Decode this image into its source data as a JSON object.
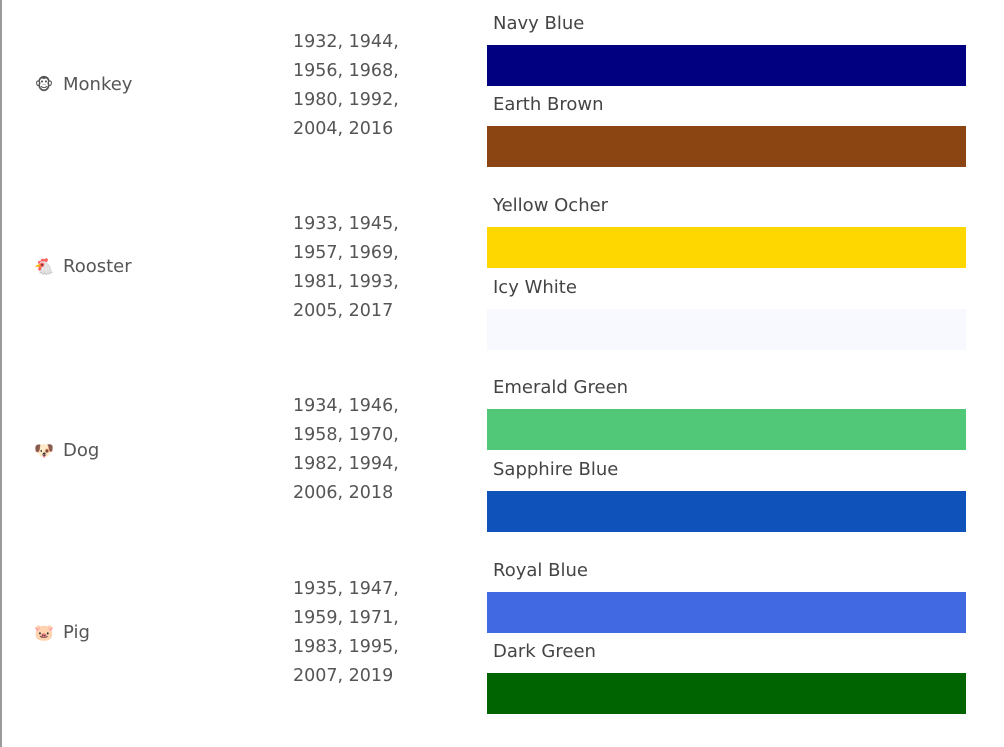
{
  "rows": [
    {
      "animal": "Monkey",
      "emoji": "🐵",
      "years_lines": [
        "1932, 1944,",
        "1956, 1968,",
        "1980, 1992,",
        "2004, 2016"
      ],
      "colors": [
        {
          "name": "Navy Blue",
          "hex": "#000080"
        },
        {
          "name": "Earth Brown",
          "hex": "#8B4513"
        }
      ]
    },
    {
      "animal": "Rooster",
      "emoji": "🐔",
      "years_lines": [
        "1933, 1945,",
        "1957, 1969,",
        "1981, 1993,",
        "2005, 2017"
      ],
      "colors": [
        {
          "name": "Yellow Ocher",
          "hex": "#FFD700"
        },
        {
          "name": "Icy White",
          "hex": "#F8F8FF"
        }
      ]
    },
    {
      "animal": "Dog",
      "emoji": "🐶",
      "years_lines": [
        "1934, 1946,",
        "1958, 1970,",
        "1982, 1994,",
        "2006, 2018"
      ],
      "colors": [
        {
          "name": "Emerald Green",
          "hex": "#50C878"
        },
        {
          "name": "Sapphire Blue",
          "hex": "#0F52BA"
        }
      ]
    },
    {
      "animal": "Pig",
      "emoji": "🐷",
      "years_lines": [
        "1935, 1947,",
        "1959, 1971,",
        "1983, 1995,",
        "2007, 2019"
      ],
      "colors": [
        {
          "name": "Royal Blue",
          "hex": "#4169E1"
        },
        {
          "name": "Dark Green",
          "hex": "#006400"
        }
      ]
    }
  ]
}
